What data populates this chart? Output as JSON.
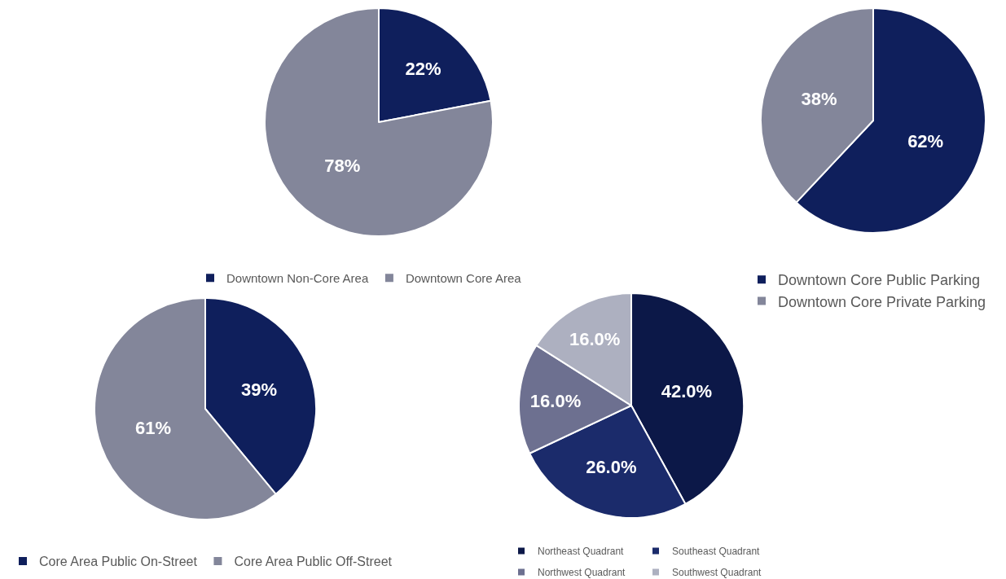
{
  "chart_data": [
    {
      "type": "pie",
      "categories": [
        "Downtown Non-Core Area",
        "Downtown Core Area"
      ],
      "values": [
        22,
        78
      ],
      "value_labels": [
        "22%",
        "78%"
      ],
      "colors": [
        "#0f1f5c",
        "#83869a"
      ],
      "legend": "bottom"
    },
    {
      "type": "pie",
      "categories": [
        "Downtown Core Public Parking",
        "Downtown Core Private Parking"
      ],
      "values": [
        62,
        38
      ],
      "value_labels": [
        "62%",
        "38%"
      ],
      "colors": [
        "#0f1f5c",
        "#83869a"
      ],
      "legend": "bottom"
    },
    {
      "type": "pie",
      "categories": [
        "Core Area Public On-Street",
        "Core Area Public Off-Street"
      ],
      "values": [
        39,
        61
      ],
      "value_labels": [
        "39%",
        "61%"
      ],
      "colors": [
        "#0f1f5c",
        "#83869a"
      ],
      "legend": "bottom"
    },
    {
      "type": "pie",
      "categories": [
        "Northeast Quadrant",
        "Southeast Quadrant",
        "Northwest Quadrant",
        "Southwest Quadrant"
      ],
      "values": [
        42.0,
        26.0,
        16.0,
        16.0
      ],
      "value_labels": [
        "42.0%",
        "26.0%",
        "16.0%",
        "16.0%"
      ],
      "colors": [
        "#0c1848",
        "#1b2b6b",
        "#6d7090",
        "#adb0c0"
      ],
      "legend": "bottom"
    }
  ]
}
